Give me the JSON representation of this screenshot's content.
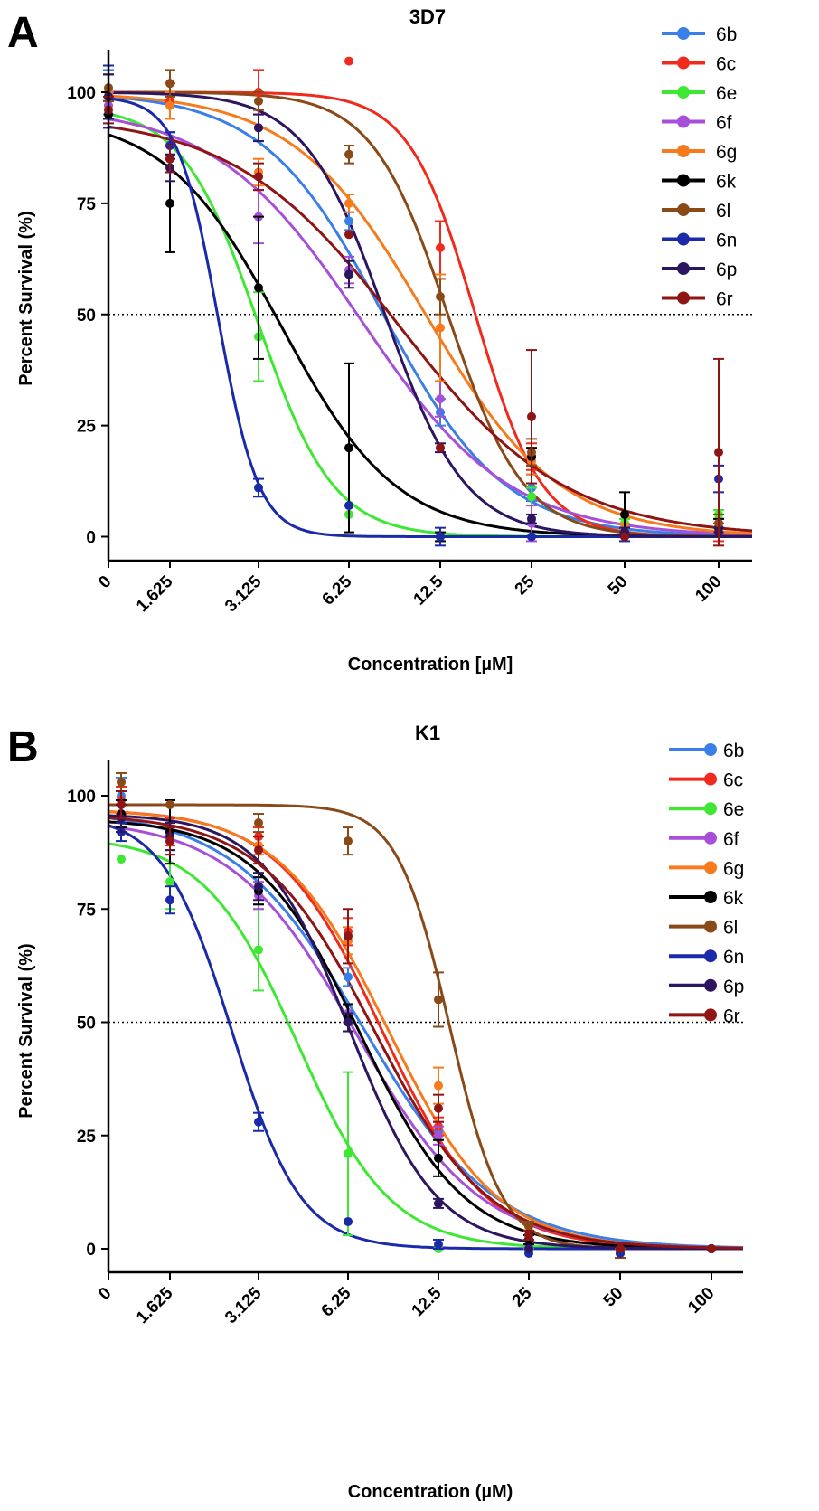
{
  "figure": {
    "panels": [
      "A",
      "B"
    ]
  },
  "chart_data": [
    {
      "type": "line",
      "panel": "A",
      "title": "3D7",
      "xlabel": "Concentration [µM]",
      "ylabel": "Percent Survival (%)",
      "x_scale": "log2 (0 shown at left)",
      "x_tick_labels": [
        "0",
        "1.625",
        "3.125",
        "6.25",
        "12.5",
        "25",
        "50",
        "100"
      ],
      "x_tick_values": [
        0,
        1.625,
        3.125,
        6.25,
        12.5,
        25,
        50,
        100
      ],
      "y_tick_labels": [
        "0",
        "25",
        "50",
        "75",
        "100"
      ],
      "y_tick_values": [
        0,
        25,
        50,
        75,
        100
      ],
      "ylim": [
        -5,
        110
      ],
      "reference_line": {
        "y": 50,
        "style": "dotted"
      },
      "legend_position": "top-right",
      "series": [
        {
          "name": "6b",
          "color": "#3a7fe8",
          "top": 100,
          "ic50": 8.0,
          "hill": 2.2,
          "points": [
            100,
            88,
            92,
            71,
            28,
            11,
            1,
            2
          ],
          "errors": [
            5,
            3,
            3,
            2,
            3,
            3,
            1,
            2
          ]
        },
        {
          "name": "6c",
          "color": "#f02a1c",
          "top": 100,
          "ic50": 16.0,
          "hill": 4.0,
          "points": [
            99,
            98,
            100,
            107,
            65,
            18,
            2,
            1
          ],
          "errors": [
            5,
            4,
            5,
            0,
            6,
            3,
            2,
            2
          ]
        },
        {
          "name": "6e",
          "color": "#3ee832",
          "top": 97,
          "ic50": 3.1,
          "hill": 3.5,
          "points": [
            97,
            85,
            45,
            5,
            0,
            9,
            3,
            5
          ],
          "errors": [
            3,
            3,
            10,
            0,
            1,
            2,
            1,
            1
          ]
        },
        {
          "name": "6f",
          "color": "#a64fd8",
          "top": 97,
          "ic50": 6.8,
          "hill": 1.8,
          "points": [
            97,
            88,
            72,
            60,
            31,
            3,
            1,
            3
          ],
          "errors": [
            3,
            3,
            6,
            3,
            4,
            4,
            1,
            2
          ]
        },
        {
          "name": "6g",
          "color": "#f57b1d",
          "top": 100,
          "ic50": 11.0,
          "hill": 2.0,
          "points": [
            100,
            97,
            82,
            75,
            47,
            17,
            2,
            2
          ],
          "errors": [
            6,
            3,
            3,
            2,
            12,
            3,
            1,
            2
          ]
        },
        {
          "name": "6k",
          "color": "#000000",
          "top": 95,
          "ic50": 3.7,
          "hill": 2.3,
          "points": [
            95,
            75,
            56,
            20,
            0,
            18,
            5,
            2
          ],
          "errors": [
            3,
            11,
            16,
            19,
            1,
            2,
            5,
            2
          ]
        },
        {
          "name": "6l",
          "color": "#8a4a18",
          "top": 100,
          "ic50": 13.0,
          "hill": 3.5,
          "points": [
            101,
            102,
            98,
            86,
            54,
            19,
            1,
            3
          ],
          "errors": [
            3,
            3,
            2,
            2,
            4,
            3,
            1,
            2
          ]
        },
        {
          "name": "6n",
          "color": "#1a2aa8",
          "top": 99,
          "ic50": 2.3,
          "hill": 6.5,
          "points": [
            99,
            88,
            11,
            7,
            0,
            0,
            0,
            13
          ],
          "errors": [
            7,
            3,
            2,
            0,
            2,
            0,
            1,
            3
          ]
        },
        {
          "name": "6p",
          "color": "#2d1660",
          "top": 100,
          "ic50": 8.1,
          "hill": 3.3,
          "points": [
            99,
            83,
            92,
            59,
            20,
            4,
            1,
            1
          ],
          "errors": [
            5,
            3,
            3,
            3,
            1,
            1,
            1,
            1
          ]
        },
        {
          "name": "6r",
          "color": "#8f1515",
          "top": 95,
          "ic50": 9.0,
          "hill": 1.6,
          "points": [
            96,
            85,
            81,
            68,
            20,
            27,
            0,
            19
          ],
          "errors": [
            3,
            3,
            3,
            0,
            0,
            15,
            0,
            21
          ]
        }
      ]
    },
    {
      "type": "line",
      "panel": "B",
      "title": "K1",
      "xlabel": "Concentration (µM)",
      "ylabel": "Percent Survival (%)",
      "x_scale": "log2 (0 shown at left)",
      "x_tick_labels": [
        "0",
        "1.625",
        "3.125",
        "6.25",
        "12.5",
        "25",
        "50",
        "100"
      ],
      "x_tick_values": [
        0,
        1.625,
        3.125,
        6.25,
        12.5,
        25,
        50,
        100
      ],
      "y_tick_labels": [
        "0",
        "25",
        "50",
        "75",
        "100"
      ],
      "y_tick_values": [
        0,
        25,
        50,
        75,
        100
      ],
      "ylim": [
        -5,
        110
      ],
      "reference_line": {
        "y": 50,
        "style": "dotted"
      },
      "legend_position": "top-right",
      "series": [
        {
          "name": "6b",
          "color": "#3a7fe8",
          "top": 97,
          "ic50": 7.0,
          "hill": 2.0,
          "points": [
            100,
            91,
            79,
            60,
            26,
            1,
            -1,
            0
          ],
          "errors": [
            4,
            3,
            3,
            2,
            2,
            1,
            1,
            0
          ]
        },
        {
          "name": "6c",
          "color": "#f02a1c",
          "top": 97,
          "ic50": 8.0,
          "hill": 2.5,
          "points": [
            99,
            92,
            91,
            70,
            27,
            2,
            -1,
            0
          ],
          "errors": [
            3,
            3,
            2,
            3,
            2,
            1,
            1,
            0
          ]
        },
        {
          "name": "6e",
          "color": "#3ee832",
          "top": 91,
          "ic50": 4.2,
          "hill": 2.8,
          "points": [
            86,
            81,
            66,
            21,
            0,
            0,
            -1,
            0
          ],
          "errors": [
            0,
            6,
            9,
            18,
            0,
            0,
            0,
            0
          ]
        },
        {
          "name": "6f",
          "color": "#a64fd8",
          "top": 95,
          "ic50": 6.6,
          "hill": 2.1,
          "points": [
            98,
            90,
            78,
            52,
            25,
            2,
            0,
            0
          ],
          "errors": [
            3,
            3,
            3,
            2,
            2,
            1,
            0,
            0
          ]
        },
        {
          "name": "6g",
          "color": "#f57b1d",
          "top": 97,
          "ic50": 8.4,
          "hill": 2.4,
          "points": [
            98,
            91,
            89,
            68,
            36,
            5,
            0,
            0
          ],
          "errors": [
            3,
            3,
            2,
            3,
            4,
            1,
            0,
            0
          ]
        },
        {
          "name": "6k",
          "color": "#000000",
          "top": 95,
          "ic50": 6.8,
          "hill": 2.5,
          "points": [
            96,
            92,
            79,
            51,
            20,
            2,
            0,
            0
          ],
          "errors": [
            3,
            7,
            3,
            3,
            4,
            1,
            0,
            0
          ]
        },
        {
          "name": "6l",
          "color": "#8a4a18",
          "top": 98,
          "ic50": 13.5,
          "hill": 5.0,
          "points": [
            103,
            98,
            94,
            90,
            55,
            5,
            -1,
            0
          ],
          "errors": [
            2,
            0,
            2,
            3,
            6,
            1,
            1,
            0
          ]
        },
        {
          "name": "6n",
          "color": "#1a2aa8",
          "top": 96,
          "ic50": 2.55,
          "hill": 3.8,
          "points": [
            92,
            77,
            28,
            6,
            1,
            -1,
            -1,
            0
          ],
          "errors": [
            2,
            3,
            2,
            0,
            1,
            0,
            0,
            0
          ]
        },
        {
          "name": "6p",
          "color": "#2d1660",
          "top": 96,
          "ic50": 6.3,
          "hill": 3.0,
          "points": [
            95,
            91,
            80,
            50,
            10,
            0,
            0,
            0
          ],
          "errors": [
            3,
            3,
            3,
            2,
            1,
            0,
            0,
            0
          ]
        },
        {
          "name": "6r",
          "color": "#8f1515",
          "top": 96,
          "ic50": 7.6,
          "hill": 2.3,
          "points": [
            98,
            90,
            88,
            69,
            31,
            3,
            0,
            0
          ],
          "errors": [
            3,
            3,
            3,
            6,
            3,
            1,
            0,
            0
          ]
        }
      ]
    }
  ]
}
